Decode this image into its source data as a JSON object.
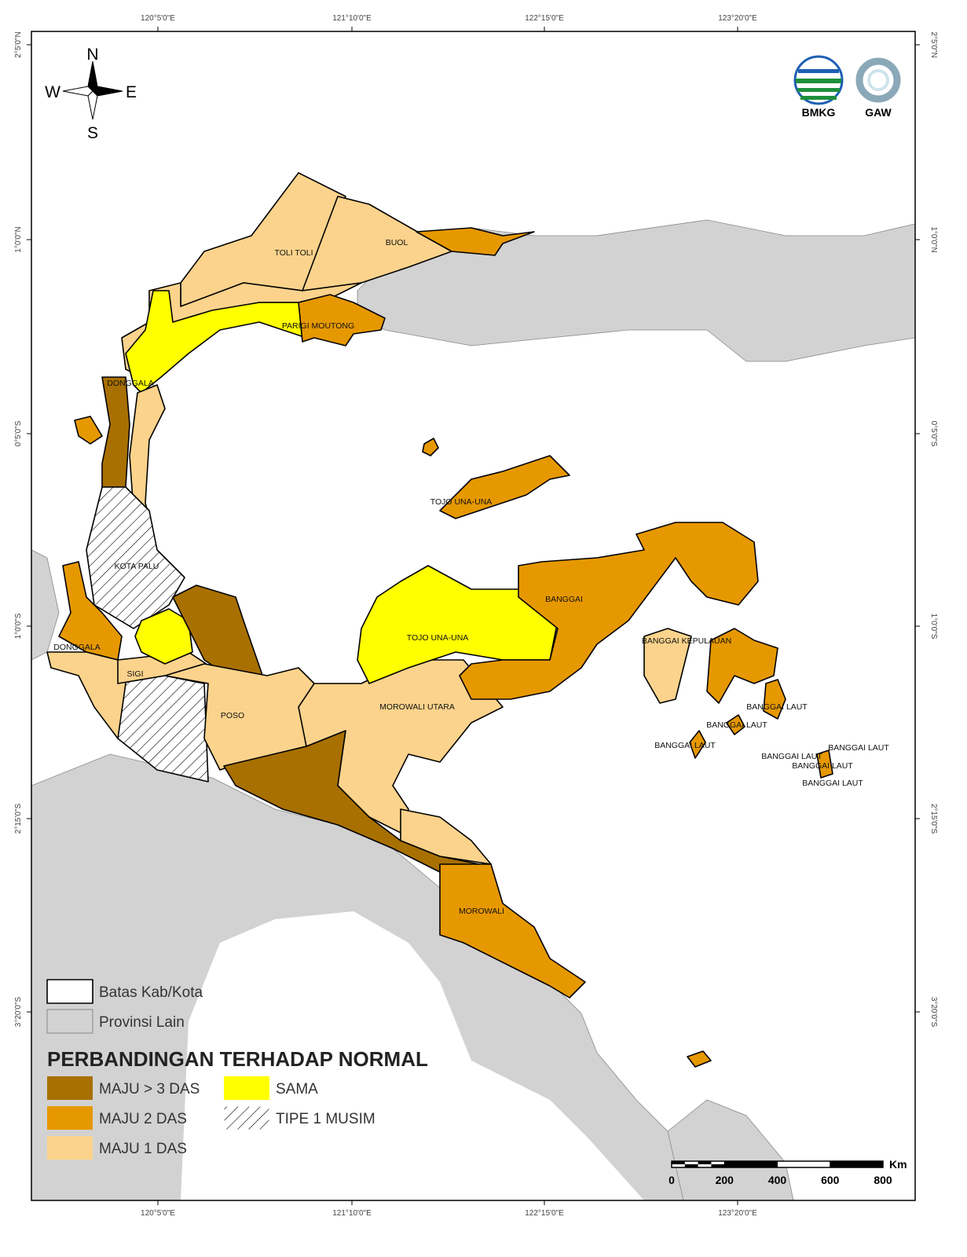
{
  "map": {
    "graticule": {
      "longitudes": [
        "120°5'0\"E",
        "121°10'0\"E",
        "122°15'0\"E",
        "123°20'0\"E"
      ],
      "latitudes": [
        "2°5'0\"N",
        "1°0'0\"N",
        "0°5'0\"S",
        "1°0'0\"S",
        "2°15'0\"S",
        "3°20'0\"S"
      ]
    },
    "compass": {
      "north": "N",
      "south": "S",
      "west": "W",
      "east": "E"
    },
    "logos": [
      "BMKG",
      "GAW"
    ],
    "region_labels": [
      "TOLI TOLI",
      "BUOL",
      "PARIGI MOUTONG",
      "DONGGALA",
      "TOJO UNA-UNA",
      "KOTA PALU",
      "BANGGAI",
      "TOJO UNA-UNA",
      "DONGGALA",
      "SIGI",
      "POSO",
      "MOROWALI UTARA",
      "BANGGAI KEPULAUAN",
      "BANGGAI LAUT",
      "BANGGAI LAUT",
      "BANGGAI LAUT",
      "BANGGAI LAUT",
      "BANGGAI LAUT",
      "BANGGAI LAUT",
      "BANGGAI LAUT",
      "MOROWALI"
    ],
    "legend": {
      "boundary": {
        "label": "Batas Kab/Kota",
        "color": "#ffffff"
      },
      "other": {
        "label": "Provinsi Lain",
        "color": "#d2d2d2"
      },
      "title": "PERBANDINGAN TERHADAP NORMAL",
      "classes": [
        {
          "label": "MAJU > 3 DAS",
          "color": "#a87000"
        },
        {
          "label": "MAJU 2 DAS",
          "color": "#e69800"
        },
        {
          "label": "MAJU 1 DAS",
          "color": "#fcd38c"
        },
        {
          "label": "SAMA",
          "color": "#ffff00"
        },
        {
          "label": "TIPE 1 MUSIM",
          "pattern": "hatch"
        }
      ]
    },
    "scale_bar": {
      "unit": "Km",
      "ticks": [
        0,
        200,
        400,
        600,
        800
      ]
    }
  }
}
